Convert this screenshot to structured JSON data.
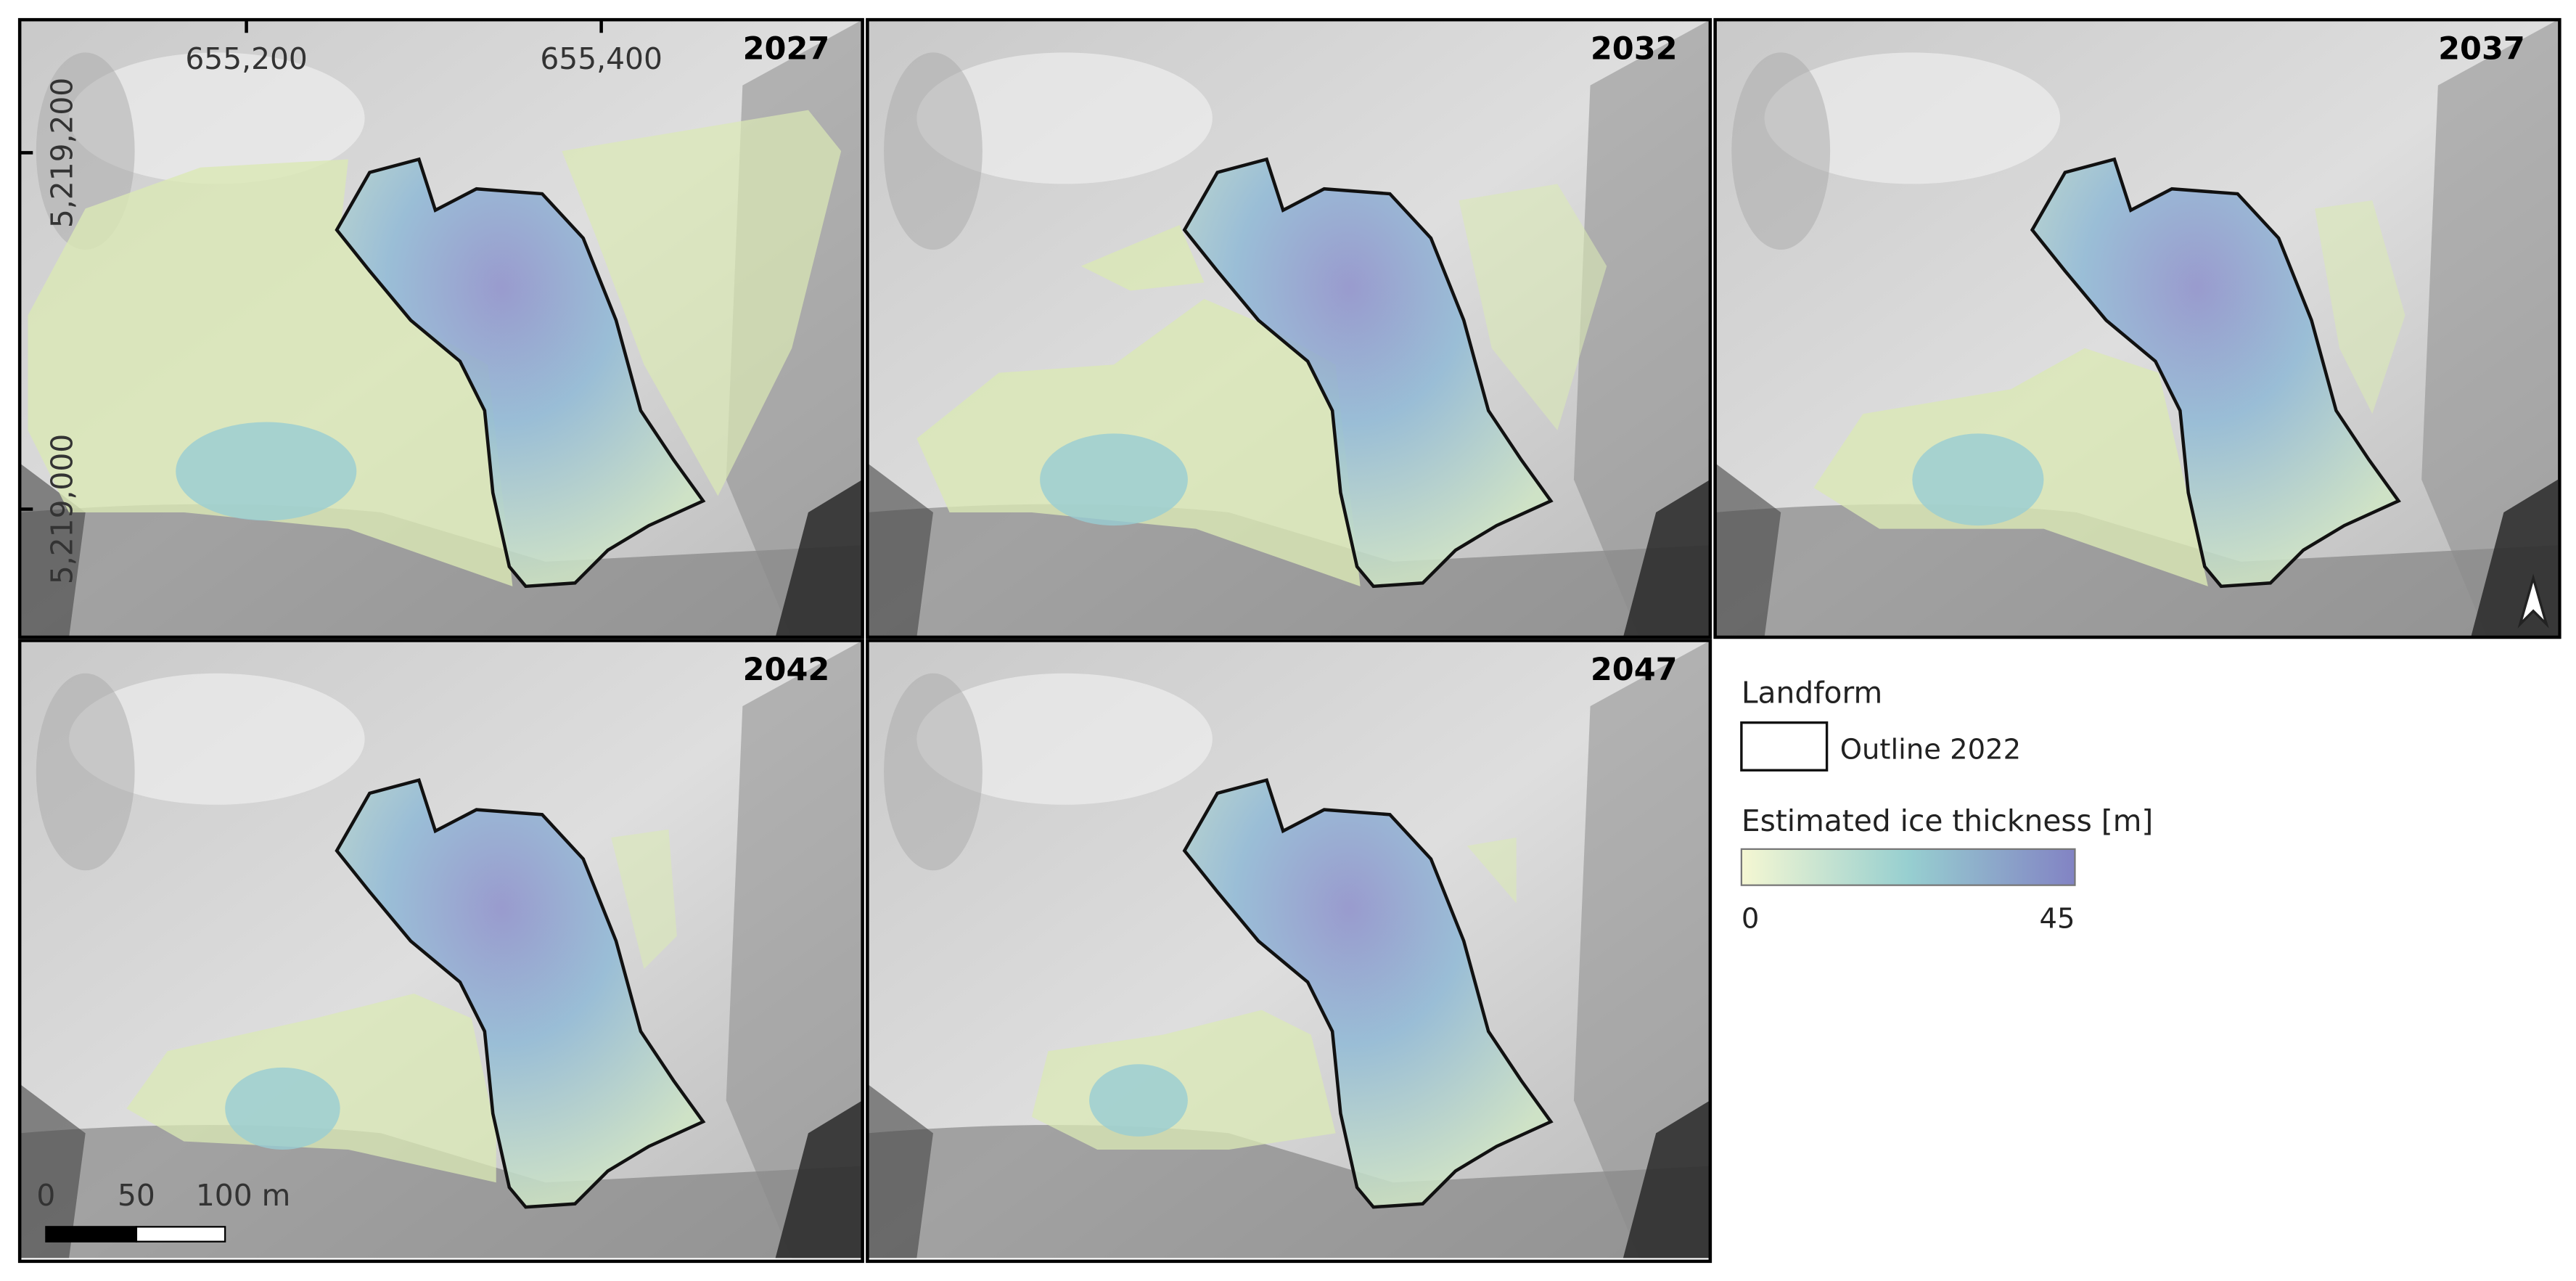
{
  "panels": [
    {
      "year": "2027"
    },
    {
      "year": "2032"
    },
    {
      "year": "2037"
    },
    {
      "year": "2042"
    },
    {
      "year": "2047"
    }
  ],
  "coordinates": {
    "x_labels": [
      "655,200",
      "655,400"
    ],
    "y_labels": [
      "5,219,200",
      "5,219,000"
    ]
  },
  "legend": {
    "group_title": "Landform",
    "outline_label": "Outline 2022",
    "ramp_title": "Estimated ice thickness [m]",
    "ramp_min": 0,
    "ramp_max": 45
  },
  "scale_bar": {
    "labels": [
      "0",
      "50",
      "100 m"
    ]
  }
}
